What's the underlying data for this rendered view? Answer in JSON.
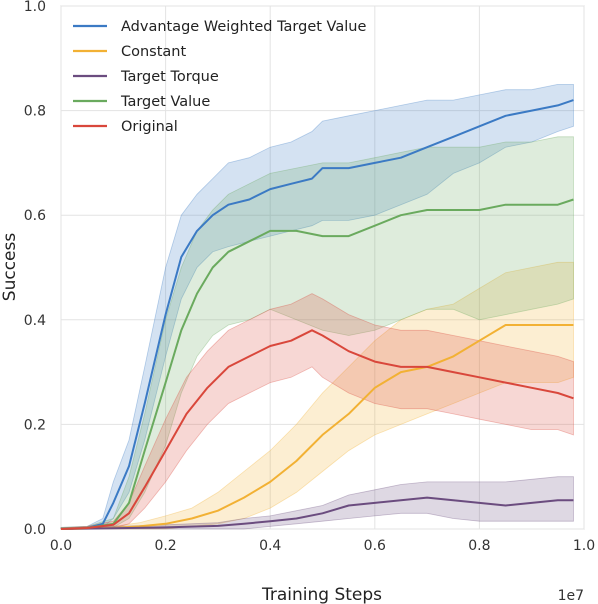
{
  "chart_data": {
    "type": "line",
    "xlabel": "Training Steps",
    "ylabel": "Success",
    "x_offset_label": "1e7",
    "xlim": [
      0,
      1.0
    ],
    "ylim": [
      0,
      1.0
    ],
    "xticks": [
      0.0,
      0.2,
      0.4,
      0.6,
      0.8,
      1.0
    ],
    "xtick_labels": [
      "0.0",
      "0.2",
      "0.4",
      "0.6",
      "0.8",
      "1.0"
    ],
    "yticks": [
      0.0,
      0.2,
      0.4,
      0.6,
      0.8,
      1.0
    ],
    "ytick_labels": [
      "0.0",
      "0.2",
      "0.4",
      "0.6",
      "0.8",
      "1.0"
    ],
    "grid": true,
    "legend_position": "top-left",
    "series": [
      {
        "name": "Advantage Weighted Target Value",
        "color": "#3b7ac4",
        "x": [
          0.0,
          0.05,
          0.08,
          0.1,
          0.13,
          0.16,
          0.2,
          0.23,
          0.26,
          0.29,
          0.32,
          0.36,
          0.4,
          0.44,
          0.48,
          0.5,
          0.55,
          0.6,
          0.65,
          0.7,
          0.75,
          0.8,
          0.85,
          0.9,
          0.95,
          0.98
        ],
        "y": [
          0.0,
          0.002,
          0.01,
          0.05,
          0.12,
          0.24,
          0.41,
          0.52,
          0.57,
          0.6,
          0.62,
          0.63,
          0.65,
          0.66,
          0.67,
          0.69,
          0.69,
          0.7,
          0.71,
          0.73,
          0.75,
          0.77,
          0.79,
          0.8,
          0.81,
          0.82
        ],
        "lower": [
          0.0,
          0.0,
          0.003,
          0.02,
          0.07,
          0.17,
          0.33,
          0.44,
          0.5,
          0.53,
          0.54,
          0.55,
          0.56,
          0.57,
          0.58,
          0.59,
          0.59,
          0.6,
          0.62,
          0.64,
          0.68,
          0.7,
          0.73,
          0.74,
          0.76,
          0.77
        ],
        "upper": [
          0.003,
          0.005,
          0.02,
          0.09,
          0.17,
          0.31,
          0.5,
          0.6,
          0.64,
          0.67,
          0.7,
          0.71,
          0.73,
          0.74,
          0.76,
          0.78,
          0.79,
          0.8,
          0.81,
          0.82,
          0.82,
          0.83,
          0.84,
          0.84,
          0.85,
          0.85
        ]
      },
      {
        "name": "Constant",
        "color": "#f2b134",
        "x": [
          0.0,
          0.1,
          0.15,
          0.2,
          0.25,
          0.3,
          0.35,
          0.4,
          0.45,
          0.5,
          0.55,
          0.6,
          0.65,
          0.7,
          0.75,
          0.8,
          0.85,
          0.9,
          0.95,
          0.98
        ],
        "y": [
          0.0,
          0.002,
          0.005,
          0.01,
          0.02,
          0.035,
          0.06,
          0.09,
          0.13,
          0.18,
          0.22,
          0.27,
          0.3,
          0.31,
          0.33,
          0.36,
          0.39,
          0.39,
          0.39,
          0.39
        ],
        "lower": [
          0.0,
          0.0,
          0.0,
          0.0,
          0.005,
          0.01,
          0.02,
          0.04,
          0.07,
          0.11,
          0.15,
          0.18,
          0.2,
          0.22,
          0.24,
          0.26,
          0.28,
          0.28,
          0.28,
          0.29
        ],
        "upper": [
          0.002,
          0.005,
          0.012,
          0.025,
          0.04,
          0.07,
          0.11,
          0.15,
          0.2,
          0.26,
          0.31,
          0.36,
          0.4,
          0.42,
          0.43,
          0.46,
          0.49,
          0.5,
          0.51,
          0.51
        ]
      },
      {
        "name": "Target Torque",
        "color": "#6b4c7f",
        "x": [
          0.0,
          0.2,
          0.3,
          0.35,
          0.4,
          0.45,
          0.5,
          0.55,
          0.6,
          0.65,
          0.7,
          0.75,
          0.8,
          0.85,
          0.9,
          0.95,
          0.98
        ],
        "y": [
          0.0,
          0.003,
          0.006,
          0.01,
          0.015,
          0.02,
          0.03,
          0.045,
          0.05,
          0.055,
          0.06,
          0.055,
          0.05,
          0.045,
          0.05,
          0.055,
          0.055
        ],
        "lower": [
          0.0,
          0.0,
          0.0,
          0.0,
          0.005,
          0.01,
          0.015,
          0.02,
          0.025,
          0.03,
          0.03,
          0.02,
          0.015,
          0.015,
          0.015,
          0.015,
          0.015
        ],
        "upper": [
          0.002,
          0.008,
          0.012,
          0.02,
          0.025,
          0.035,
          0.045,
          0.065,
          0.075,
          0.085,
          0.09,
          0.09,
          0.09,
          0.09,
          0.095,
          0.1,
          0.1
        ]
      },
      {
        "name": "Target Value",
        "color": "#6aaa5e",
        "x": [
          0.0,
          0.05,
          0.1,
          0.13,
          0.16,
          0.2,
          0.23,
          0.26,
          0.29,
          0.32,
          0.36,
          0.4,
          0.45,
          0.5,
          0.55,
          0.6,
          0.65,
          0.7,
          0.75,
          0.8,
          0.85,
          0.9,
          0.95,
          0.98
        ],
        "y": [
          0.0,
          0.002,
          0.01,
          0.05,
          0.15,
          0.28,
          0.38,
          0.45,
          0.5,
          0.53,
          0.55,
          0.57,
          0.57,
          0.56,
          0.56,
          0.58,
          0.6,
          0.61,
          0.61,
          0.61,
          0.62,
          0.62,
          0.62,
          0.63
        ],
        "lower": [
          0.0,
          0.0,
          0.003,
          0.02,
          0.07,
          0.16,
          0.26,
          0.33,
          0.37,
          0.39,
          0.4,
          0.42,
          0.4,
          0.38,
          0.37,
          0.38,
          0.4,
          0.42,
          0.42,
          0.4,
          0.41,
          0.42,
          0.43,
          0.44
        ],
        "upper": [
          0.003,
          0.005,
          0.02,
          0.1,
          0.22,
          0.4,
          0.5,
          0.57,
          0.61,
          0.64,
          0.66,
          0.68,
          0.69,
          0.7,
          0.7,
          0.71,
          0.72,
          0.73,
          0.73,
          0.73,
          0.74,
          0.74,
          0.75,
          0.75
        ]
      },
      {
        "name": "Original",
        "color": "#d9473b",
        "x": [
          0.0,
          0.05,
          0.1,
          0.13,
          0.16,
          0.2,
          0.24,
          0.28,
          0.32,
          0.36,
          0.4,
          0.44,
          0.48,
          0.5,
          0.55,
          0.6,
          0.65,
          0.7,
          0.75,
          0.8,
          0.85,
          0.9,
          0.95,
          0.98
        ],
        "y": [
          0.0,
          0.002,
          0.008,
          0.03,
          0.08,
          0.15,
          0.22,
          0.27,
          0.31,
          0.33,
          0.35,
          0.36,
          0.38,
          0.37,
          0.34,
          0.32,
          0.31,
          0.31,
          0.3,
          0.29,
          0.28,
          0.27,
          0.26,
          0.25
        ],
        "lower": [
          0.0,
          0.0,
          0.002,
          0.01,
          0.04,
          0.09,
          0.15,
          0.2,
          0.24,
          0.26,
          0.28,
          0.29,
          0.31,
          0.29,
          0.26,
          0.24,
          0.23,
          0.23,
          0.22,
          0.21,
          0.2,
          0.19,
          0.19,
          0.18
        ],
        "upper": [
          0.002,
          0.005,
          0.015,
          0.05,
          0.12,
          0.21,
          0.29,
          0.34,
          0.38,
          0.4,
          0.42,
          0.43,
          0.45,
          0.44,
          0.41,
          0.39,
          0.38,
          0.38,
          0.37,
          0.36,
          0.35,
          0.34,
          0.33,
          0.32
        ]
      }
    ]
  }
}
